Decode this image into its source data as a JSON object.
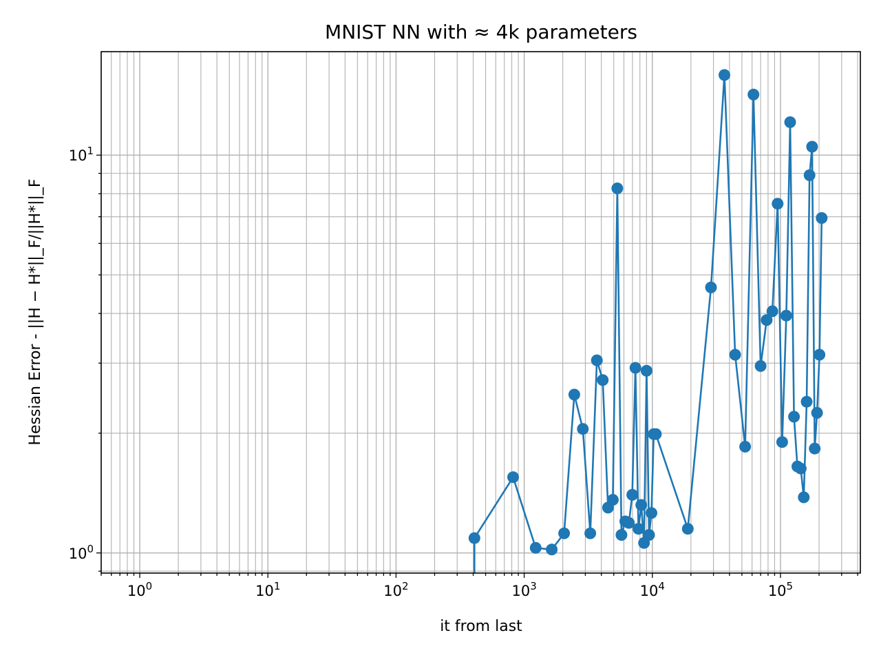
{
  "chart_data": {
    "type": "line",
    "title": "MNIST NN with $\\approx$ 4k parameters",
    "title_display": "MNIST NN with  ≈  4k parameters",
    "xlabel": "it from last",
    "ylabel": "Hessian Error - ||H − H*||_F/||H*||_F",
    "xscale": "log",
    "yscale": "log",
    "xlim": [
      0.5,
      420000
    ],
    "ylim": [
      0.89,
      18.2
    ],
    "x_tick_labels": [
      "10^0",
      "10^1",
      "10^2",
      "10^3",
      "10^4",
      "10^5"
    ],
    "y_tick_labels": [
      "10^0",
      "10^1"
    ],
    "grid": true,
    "grid_which": "both",
    "legend": "none",
    "color": "#1f77b4",
    "series": [
      {
        "marker": "circle",
        "x": [
          409,
          409,
          820,
          1230,
          1640,
          2050,
          2460,
          2870,
          3280,
          3690,
          4100,
          4510,
          4920,
          5330,
          5740,
          6150,
          6560,
          6970,
          7380,
          7790,
          8200,
          8610,
          9020,
          9430,
          9840,
          10250,
          10660,
          18900,
          28700,
          36500,
          44300,
          53000,
          61500,
          70000,
          78000,
          86500,
          95000,
          103000,
          111000,
          119000,
          127500,
          135500,
          144000,
          152000,
          160000,
          168500,
          176500,
          185000,
          193000,
          201500,
          209500
        ],
        "y": [
          0.88,
          1.09,
          1.55,
          1.03,
          1.02,
          1.12,
          2.5,
          2.05,
          1.12,
          3.05,
          2.72,
          1.3,
          1.36,
          8.25,
          1.11,
          1.2,
          1.19,
          1.4,
          2.92,
          1.15,
          1.32,
          1.06,
          2.87,
          1.11,
          1.26,
          1.99,
          1.99,
          1.15,
          4.65,
          15.9,
          3.15,
          1.85,
          14.2,
          2.95,
          3.85,
          4.05,
          7.55,
          1.9,
          3.95,
          12.1,
          2.2,
          1.65,
          1.63,
          1.38,
          2.4,
          8.9,
          10.5,
          1.83,
          2.25,
          3.15,
          6.95
        ]
      }
    ]
  }
}
